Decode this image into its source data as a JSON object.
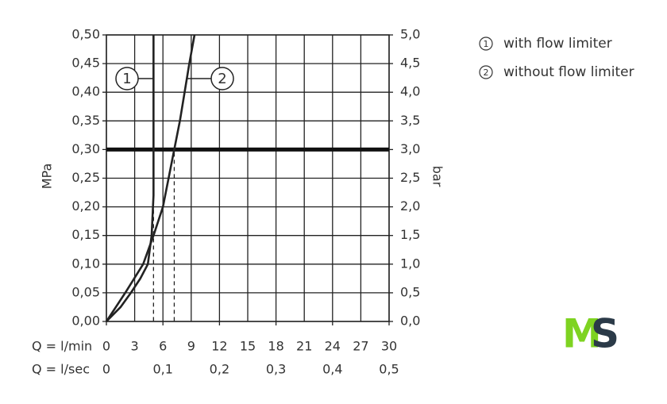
{
  "chart_data": {
    "type": "line",
    "x_label": "Q = l/min",
    "x2_label": "Q = l/sec",
    "y_label": "MPa",
    "y2_label": "bar",
    "xlim": [
      0,
      30
    ],
    "xticks": [
      0,
      3,
      6,
      9,
      12,
      15,
      18,
      21,
      24,
      27,
      30
    ],
    "x2lim": [
      0,
      0.5
    ],
    "x2ticks": [
      0,
      {
        "value": 0.1,
        "label": "0,1"
      },
      {
        "value": 0.2,
        "label": "0,2"
      },
      {
        "value": 0.3,
        "label": "0,3"
      },
      {
        "value": 0.4,
        "label": "0,4"
      },
      {
        "value": 0.5,
        "label": "0,5"
      }
    ],
    "ylim": [
      0,
      0.5
    ],
    "yticks": [
      {
        "value": 0,
        "label": "0,00"
      },
      {
        "value": 0.05,
        "label": "0,05"
      },
      {
        "value": 0.1,
        "label": "0,10"
      },
      {
        "value": 0.15,
        "label": "0,15"
      },
      {
        "value": 0.2,
        "label": "0,20"
      },
      {
        "value": 0.25,
        "label": "0,25"
      },
      {
        "value": 0.3,
        "label": "0,30"
      },
      {
        "value": 0.35,
        "label": "0,35"
      },
      {
        "value": 0.4,
        "label": "0,40"
      },
      {
        "value": 0.45,
        "label": "0,45"
      },
      {
        "value": 0.5,
        "label": "0,50"
      }
    ],
    "y2lim": [
      0,
      5
    ],
    "y2ticks": [
      {
        "value": 0,
        "label": "0,0"
      },
      {
        "value": 0.5,
        "label": "0,5"
      },
      {
        "value": 1,
        "label": "1,0"
      },
      {
        "value": 1.5,
        "label": "1,5"
      },
      {
        "value": 2,
        "label": "2,0"
      },
      {
        "value": 2.5,
        "label": "2,5"
      },
      {
        "value": 3,
        "label": "3,0"
      },
      {
        "value": 3.5,
        "label": "3,5"
      },
      {
        "value": 4,
        "label": "4,0"
      },
      {
        "value": 4.5,
        "label": "4,5"
      },
      {
        "value": 5,
        "label": "5,0"
      }
    ],
    "grid": true,
    "reference_y": 0.3,
    "drop_x": [
      5.0,
      7.2
    ],
    "series": [
      {
        "name": "with flow limiter",
        "marker": "1",
        "color": "#222222",
        "x": [
          0,
          1.5,
          2.6,
          3.6,
          4.4,
          4.8,
          5.0,
          5.0
        ],
        "values": [
          0,
          0.025,
          0.05,
          0.075,
          0.1,
          0.15,
          0.22,
          0.5
        ]
      },
      {
        "name": "without flow limiter",
        "marker": "2",
        "color": "#222222",
        "x": [
          0,
          2.0,
          3.9,
          5.0,
          6.0,
          6.6,
          7.2,
          7.8,
          8.3,
          8.8,
          9.35
        ],
        "values": [
          0,
          0.05,
          0.1,
          0.15,
          0.2,
          0.25,
          0.3,
          0.35,
          0.4,
          0.45,
          0.5
        ]
      }
    ],
    "logo": [
      "M",
      "S"
    ]
  }
}
